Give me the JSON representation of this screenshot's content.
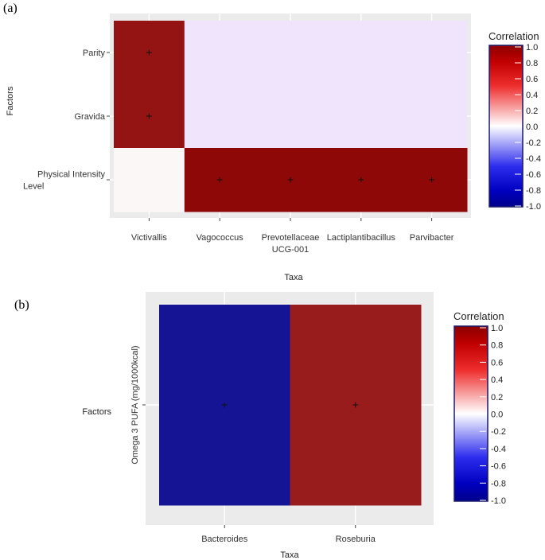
{
  "panels": [
    {
      "label": "(a)"
    },
    {
      "label": "(b)"
    }
  ],
  "legend": {
    "title": "Correlation",
    "ticks": [
      "1.0",
      "0.8",
      "0.6",
      "0.4",
      "0.2",
      "0.0",
      "-0.2",
      "-0.4",
      "-0.6",
      "-0.8",
      "-1.0"
    ],
    "tick_values": [
      1.0,
      0.8,
      0.6,
      0.4,
      0.2,
      0.0,
      -0.2,
      -0.4,
      -0.6,
      -0.8,
      -1.0
    ],
    "low_color": "#00008b",
    "mid_color": "#ffffff",
    "high_color": "#8b0000"
  },
  "chart_data": [
    {
      "type": "heatmap",
      "title": "",
      "xlabel": "Taxa",
      "ylabel": "Factors",
      "x_categories": [
        "Victivallis",
        "Vagococcus",
        "Prevotellaceae UCG-001",
        "Lactiplantibacillus",
        "Parvibacter"
      ],
      "x_tick_lines": [
        [
          "Victivallis"
        ],
        [
          "Vagococcus"
        ],
        [
          "Prevotellaceae",
          "UCG-001"
        ],
        [
          "Lactiplantibacillus"
        ],
        [
          "Parvibacter"
        ]
      ],
      "y_categories": [
        "Parity",
        "Gravida",
        "Physical Intensity Level"
      ],
      "y_tick_lines": [
        [
          "Parity"
        ],
        [
          "Gravida"
        ],
        [
          "Physical Intensity",
          "Level"
        ]
      ],
      "values": [
        [
          0.92,
          0.0,
          0.0,
          0.0,
          0.0
        ],
        [
          0.92,
          0.0,
          0.0,
          0.0,
          0.0
        ],
        [
          0.03,
          0.97,
          0.97,
          0.97,
          0.97
        ]
      ],
      "significant": [
        [
          true,
          false,
          false,
          false,
          false
        ],
        [
          true,
          false,
          false,
          false,
          false
        ],
        [
          false,
          true,
          true,
          true,
          true
        ]
      ],
      "merged_blank_block": {
        "rows": [
          0,
          1
        ],
        "cols": [
          1,
          4
        ],
        "color": "#efe4fc"
      },
      "marker": "+",
      "clim": [
        -1,
        1
      ]
    },
    {
      "type": "heatmap",
      "title": "",
      "xlabel": "Taxa",
      "ylabel": "Factors",
      "x_categories": [
        "Bacteroides",
        "Roseburia"
      ],
      "x_tick_lines": [
        [
          "Bacteroides"
        ],
        [
          "Roseburia"
        ]
      ],
      "y_categories": [
        "Omega 3 PUFA (mg/1000kcal)"
      ],
      "y_tick_lines": [
        [
          "Omega 3 PUFA (mg/1000kcal)"
        ]
      ],
      "values": [
        [
          -0.92,
          0.89
        ]
      ],
      "significant": [
        [
          true,
          true
        ]
      ],
      "marker": "+",
      "clim": [
        -1,
        1
      ]
    }
  ]
}
